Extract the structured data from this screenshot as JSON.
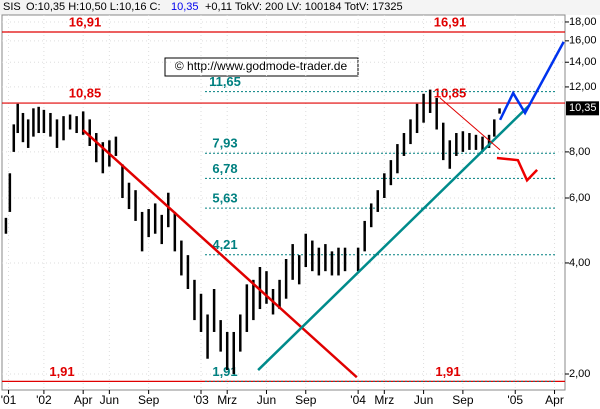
{
  "header": {
    "symbol": "SIS",
    "text1": "O:10,35 H:10,50 L:10,16 C:",
    "close": "10,35",
    "text2": "+0,11 TokV: 200 LV: 100184 TotV: 17325"
  },
  "watermark": "© http://www.godmode-trader.de",
  "chart_data": {
    "type": "range-bar",
    "color": "#000000",
    "log_scale": true,
    "last_label": "10,35",
    "x": [
      -2.9,
      -2.6,
      -2.3,
      -2.0,
      -1.6,
      -1.2,
      -0.8,
      -0.4,
      0,
      0.5,
      1,
      1.5,
      2,
      2.5,
      3,
      3.5,
      4,
      4.5,
      5,
      5.5,
      6,
      6.5,
      7,
      7.5,
      8,
      8.5,
      9,
      9.5,
      10,
      10.5,
      11,
      11.5,
      12,
      12.5,
      13,
      13.5,
      14,
      14.5,
      15,
      15.5,
      16,
      16.5,
      17,
      17.5,
      18,
      18.5,
      19,
      19.5,
      20,
      20.5,
      21,
      21.5,
      22,
      22.5,
      23,
      24,
      24.5,
      25,
      25.5,
      26,
      26.5,
      27,
      27.5,
      28,
      28.5,
      29,
      29.5,
      30,
      30.5,
      31,
      31.5,
      32,
      32.5,
      33,
      33.5,
      34,
      34.4,
      34.8
    ],
    "high": [
      5.3,
      7,
      9.5,
      10.8,
      10.2,
      9.8,
      10.5,
      10.6,
      10.4,
      10.2,
      9.8,
      10,
      10.1,
      10,
      10.3,
      9.8,
      9,
      8.5,
      8.6,
      8.8,
      7.4,
      6.6,
      6.3,
      5.5,
      5.6,
      5.8,
      5.4,
      6.2,
      5.5,
      4.6,
      4.2,
      3.6,
      3.3,
      2.9,
      3.4,
      2.8,
      2.6,
      2.6,
      2.9,
      3.5,
      3.6,
      3.9,
      3.8,
      3.4,
      3.6,
      4.1,
      4.5,
      4.2,
      4.8,
      4.6,
      4.4,
      4.5,
      4.3,
      4.4,
      4.4,
      4.4,
      5.2,
      5.8,
      6.3,
      7,
      7.6,
      8.4,
      9,
      9.8,
      10.8,
      11.5,
      11.8,
      11.2,
      9.6,
      8.6,
      9,
      9.1,
      9,
      8.9,
      8.8,
      8.9,
      9.8,
      10.5
    ],
    "low": [
      4.8,
      5.5,
      8,
      9,
      8.5,
      8.2,
      8.8,
      9,
      9,
      8.8,
      8.2,
      8.6,
      9.2,
      9,
      8.9,
      8.3,
      7.5,
      7,
      7.3,
      7.8,
      6,
      5.6,
      5.2,
      4.3,
      4.7,
      4.8,
      4.5,
      5,
      4.3,
      3.7,
      3.4,
      2.8,
      2.6,
      2.2,
      2.6,
      2.3,
      2.05,
      2,
      2.3,
      2.6,
      2.8,
      3,
      3.1,
      2.9,
      3,
      3.2,
      3.6,
      3.5,
      3.9,
      3.8,
      3.7,
      3.8,
      3.7,
      3.7,
      3.8,
      3.8,
      4.3,
      5,
      5.5,
      6,
      6.5,
      7,
      7.8,
      8.4,
      9,
      9.6,
      10.2,
      9.2,
      7.6,
      7.2,
      7.8,
      8,
      8.1,
      8.1,
      8,
      8.2,
      8.8,
      10.16
    ],
    "xlim": [
      -3.2,
      39.8
    ],
    "ylim": [
      1.81,
      18.8
    ],
    "xticks": [
      {
        "value": -2.7,
        "label": "'01"
      },
      {
        "value": 0,
        "label": "'02"
      },
      {
        "value": 3,
        "label": "Apr"
      },
      {
        "value": 5,
        "label": "Jun"
      },
      {
        "value": 8,
        "label": "Sep"
      },
      {
        "value": 12,
        "label": "'03"
      },
      {
        "value": 14,
        "label": "Mrz"
      },
      {
        "value": 17,
        "label": "Jun"
      },
      {
        "value": 20,
        "label": "Sep"
      },
      {
        "value": 24,
        "label": "'04"
      },
      {
        "value": 26,
        "label": "Mrz"
      },
      {
        "value": 29,
        "label": "Jun"
      },
      {
        "value": 32,
        "label": "Sep"
      },
      {
        "value": 36,
        "label": "'05"
      },
      {
        "value": 39,
        "label": "Apr"
      }
    ],
    "yticks": [
      {
        "value": 2,
        "label": "2,00"
      },
      {
        "value": 4,
        "label": "4,00"
      },
      {
        "value": 6,
        "label": "6,00"
      },
      {
        "value": 8,
        "label": "8,00"
      },
      {
        "value": 12,
        "label": "12,00"
      },
      {
        "value": 14,
        "label": "14,00"
      },
      {
        "value": 16,
        "label": "16,00"
      },
      {
        "value": 18,
        "label": "18,00"
      }
    ],
    "levels": [
      {
        "value": 16.91,
        "label": "16,91",
        "color": "#e00000"
      },
      {
        "value": 10.85,
        "label": "10,85",
        "color": "#e00000"
      },
      {
        "value": 1.91,
        "label": "1,91",
        "color": "#e00000"
      },
      {
        "value": 11.65,
        "label": "11,65",
        "color": "#008080"
      },
      {
        "value": 7.93,
        "label": "7,93",
        "color": "#008080"
      },
      {
        "value": 6.78,
        "label": "6,78",
        "color": "#008080"
      },
      {
        "value": 5.63,
        "label": "5,63",
        "color": "#008080"
      },
      {
        "value": 4.21,
        "label": "4,21",
        "color": "#008080"
      },
      {
        "value": 1.91,
        "label": "1,91",
        "color": "#008080"
      }
    ],
    "trendlines": [
      {
        "color": "#e00000",
        "x": [
          2.99,
          23.9
        ],
        "values": [
          9.17,
          1.96
        ]
      },
      {
        "color": "#008b8b",
        "x": [
          16.36,
          37.1
        ],
        "values": [
          2.05,
          10.72
        ]
      },
      {
        "color": "#e00000",
        "x": [
          30.26,
          34.84
        ],
        "values": [
          11.2,
          8.1
        ]
      },
      {
        "color": "#0033ee",
        "x": [
          34.84,
          35.84,
          36.75,
          39.7
        ],
        "values": [
          9.77,
          11.55,
          10.2,
          15.9
        ]
      },
      {
        "color": "#ee0000",
        "x": [
          34.6,
          36.2,
          36.9,
          37.67
        ],
        "values": [
          7.7,
          7.6,
          6.7,
          7.15
        ]
      }
    ]
  }
}
